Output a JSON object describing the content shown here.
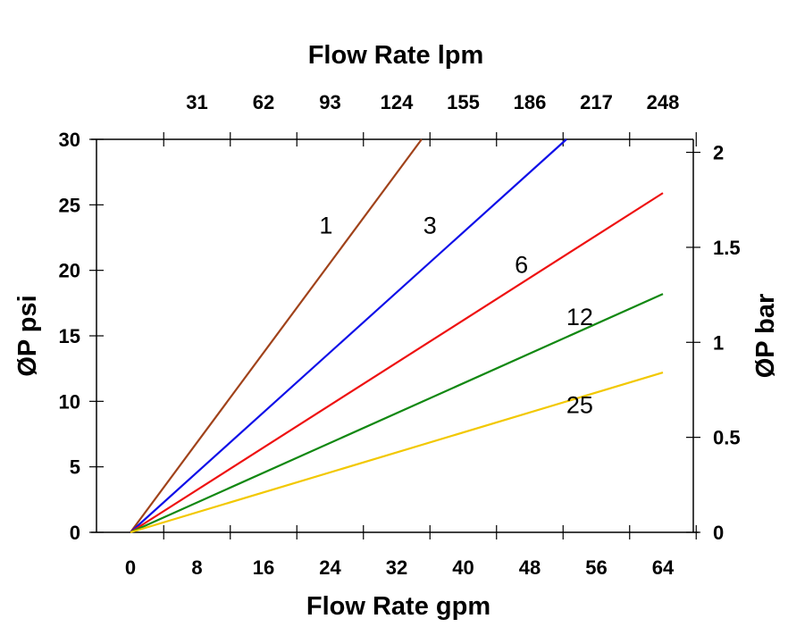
{
  "chart_data": {
    "type": "line",
    "xlabel": "Flow Rate gpm",
    "ylabel": "ØP psi",
    "top_xlabel": "Flow Rate lpm",
    "right_ylabel": "ØP bar",
    "xlim": [
      0,
      64
    ],
    "ylim": [
      0,
      30
    ],
    "x_ticks": [
      "0",
      "8",
      "16",
      "24",
      "32",
      "40",
      "48",
      "56",
      "64"
    ],
    "y_ticks": [
      "0",
      "5",
      "10",
      "15",
      "20",
      "25",
      "30"
    ],
    "top_x_ticks": [
      "31",
      "62",
      "93",
      "124",
      "155",
      "186",
      "217",
      "248"
    ],
    "right_y_ticks": [
      "0",
      "0.5",
      "1",
      "1.5",
      "2"
    ],
    "grid": false,
    "series": [
      {
        "name": "1",
        "color": "#a0421a",
        "x": [
          0,
          35
        ],
        "y": [
          0,
          30
        ],
        "label_at": [
          23.5,
          23.5
        ]
      },
      {
        "name": "3",
        "color": "#1010e8",
        "x": [
          0,
          52.4
        ],
        "y": [
          0,
          30
        ],
        "label_at": [
          36,
          23.5
        ]
      },
      {
        "name": "6",
        "color": "#ee1111",
        "x": [
          0,
          64
        ],
        "y": [
          0,
          25.9
        ],
        "label_at": [
          47,
          20.5
        ]
      },
      {
        "name": "12",
        "color": "#118811",
        "x": [
          0,
          64
        ],
        "y": [
          0,
          18.2
        ],
        "label_at": [
          54,
          16.5
        ]
      },
      {
        "name": "25",
        "color": "#f2c800",
        "x": [
          0,
          64
        ],
        "y": [
          0,
          12.2
        ],
        "label_at": [
          54,
          9.8
        ]
      }
    ]
  }
}
